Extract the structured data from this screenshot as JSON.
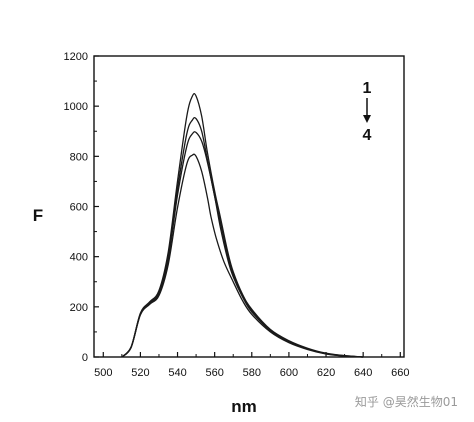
{
  "chart_data": {
    "type": "line",
    "title": "",
    "xlabel": "nm",
    "ylabel": "F",
    "xlim": [
      495,
      662
    ],
    "ylim": [
      0,
      1200
    ],
    "xticks": [
      500,
      520,
      540,
      560,
      580,
      600,
      620,
      640,
      660
    ],
    "yticks": [
      0,
      200,
      400,
      600,
      800,
      1000,
      1200
    ],
    "grid": false,
    "legend": {
      "top": "1",
      "bottom": "4",
      "placement": "top-right"
    },
    "series": [
      {
        "x": [
          510,
          515,
          520,
          525,
          530,
          535,
          540,
          545,
          548,
          550,
          553,
          556,
          560,
          563,
          567,
          570,
          575,
          580,
          590,
          600,
          610,
          620,
          630,
          640
        ],
        "y": [
          0,
          40,
          175,
          220,
          265,
          420,
          700,
          960,
          1040,
          1040,
          960,
          820,
          660,
          560,
          420,
          340,
          250,
          190,
          110,
          65,
          35,
          15,
          5,
          0
        ]
      },
      {
        "x": [
          510,
          515,
          520,
          525,
          530,
          535,
          540,
          545,
          548,
          550,
          553,
          556,
          560,
          563,
          567,
          570,
          575,
          580,
          590,
          600,
          610,
          620,
          630,
          640
        ],
        "y": [
          0,
          40,
          172,
          215,
          258,
          405,
          670,
          890,
          945,
          950,
          900,
          790,
          640,
          540,
          405,
          330,
          245,
          185,
          108,
          63,
          33,
          14,
          5,
          0
        ]
      },
      {
        "x": [
          510,
          515,
          520,
          525,
          530,
          535,
          540,
          545,
          548,
          550,
          553,
          556,
          560,
          563,
          567,
          570,
          575,
          580,
          590,
          600,
          610,
          620,
          630,
          640
        ],
        "y": [
          0,
          38,
          170,
          212,
          252,
          390,
          645,
          840,
          890,
          895,
          860,
          780,
          640,
          520,
          390,
          320,
          240,
          180,
          105,
          60,
          32,
          13,
          4,
          0
        ]
      },
      {
        "x": [
          510,
          515,
          520,
          525,
          530,
          535,
          540,
          545,
          548,
          550,
          553,
          556,
          558,
          561,
          565,
          570,
          575,
          580,
          590,
          600,
          610,
          620,
          630,
          640
        ],
        "y": [
          0,
          38,
          168,
          210,
          245,
          370,
          595,
          770,
          805,
          800,
          740,
          640,
          560,
          470,
          380,
          300,
          225,
          170,
          100,
          57,
          30,
          12,
          4,
          0
        ]
      }
    ]
  },
  "watermark": "知乎 @昊然生物01"
}
